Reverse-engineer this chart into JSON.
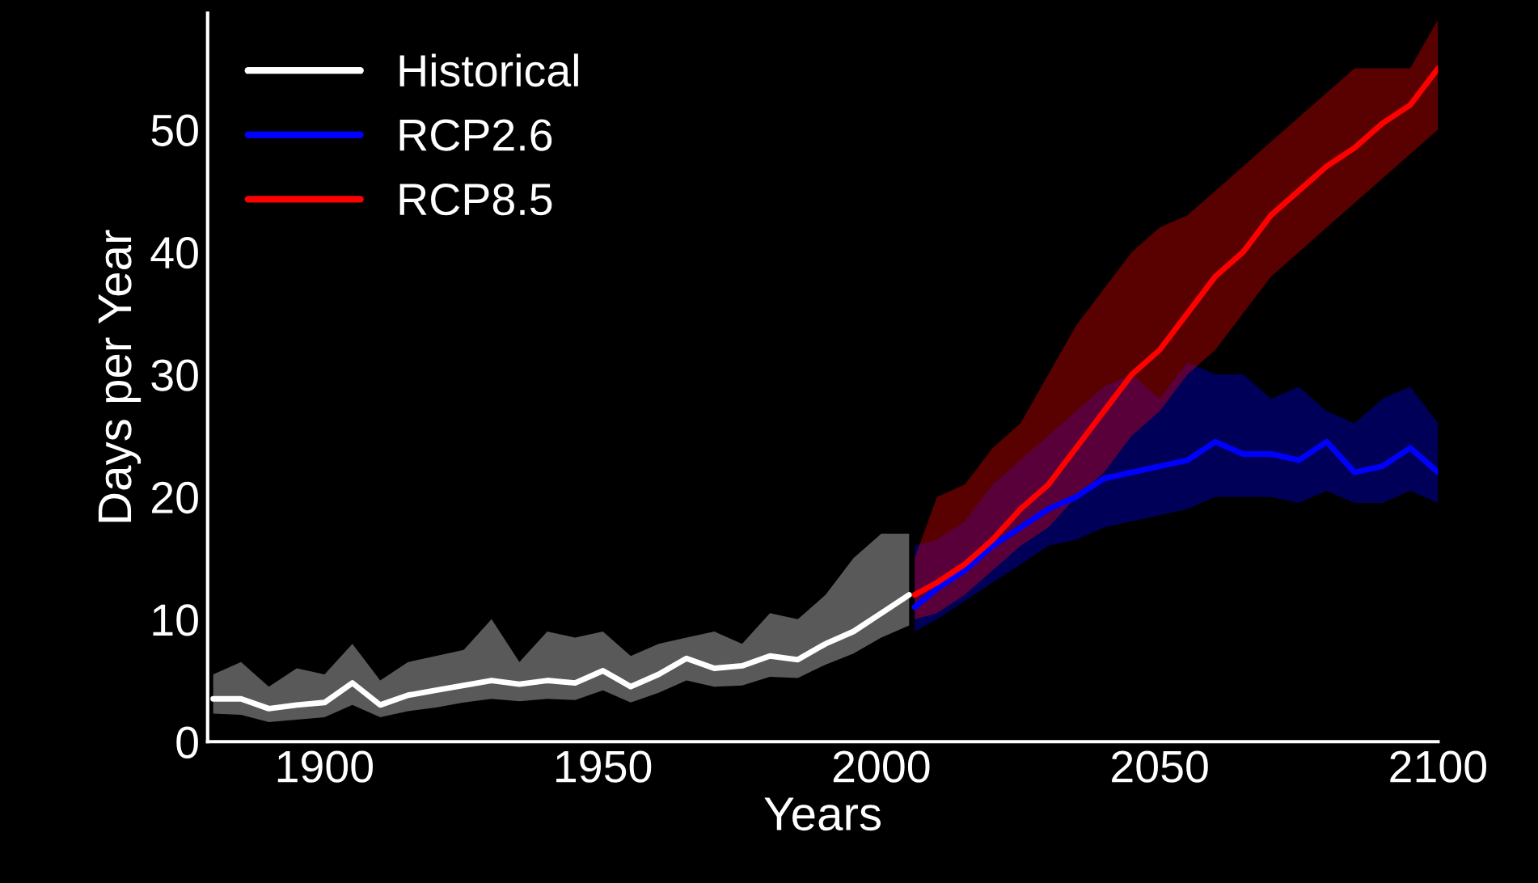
{
  "chart_data": {
    "type": "line",
    "xlabel": "Years",
    "ylabel": "Days per Year",
    "xlim": [
      1879,
      2100
    ],
    "ylim": [
      0,
      59.5
    ],
    "xticks": [
      1900,
      1950,
      2000,
      2050,
      2100
    ],
    "yticks": [
      0,
      10,
      20,
      30,
      40,
      50
    ],
    "grid": false,
    "legend": "top left",
    "line_style": "solid",
    "marker": "none",
    "series": [
      {
        "name": "Historical",
        "color": "#ffffff",
        "x": [
          1880,
          1885,
          1890,
          1895,
          1900,
          1905,
          1910,
          1915,
          1920,
          1925,
          1930,
          1935,
          1940,
          1945,
          1950,
          1955,
          1960,
          1965,
          1970,
          1975,
          1980,
          1985,
          1990,
          1995,
          2000,
          2005
        ],
        "values": [
          3.5,
          3.5,
          2.7,
          3,
          3.2,
          4.8,
          3,
          3.8,
          4.2,
          4.6,
          5,
          4.7,
          5,
          4.8,
          5.8,
          4.5,
          5.5,
          6.8,
          6,
          6.2,
          7,
          6.7,
          8,
          9,
          10.5,
          12
        ],
        "lower": [
          2.3,
          2.2,
          1.6,
          1.8,
          2,
          3,
          2,
          2.5,
          2.8,
          3.2,
          3.5,
          3.3,
          3.5,
          3.4,
          4.2,
          3.2,
          4,
          5,
          4.5,
          4.6,
          5.3,
          5.2,
          6.3,
          7.2,
          8.5,
          9.5
        ],
        "upper": [
          5.5,
          6.5,
          4.5,
          6,
          5.5,
          8,
          5,
          6.5,
          7,
          7.5,
          10,
          6.5,
          9,
          8.5,
          9,
          7,
          8,
          8.5,
          9,
          8,
          10.5,
          10,
          12,
          15,
          17,
          17
        ]
      },
      {
        "name": "RCP2.6",
        "color": "#0000ff",
        "x": [
          2006,
          2010,
          2015,
          2020,
          2025,
          2030,
          2035,
          2040,
          2045,
          2050,
          2055,
          2060,
          2065,
          2070,
          2075,
          2080,
          2085,
          2090,
          2095,
          2100
        ],
        "values": [
          11,
          12.5,
          14,
          16,
          17.5,
          19,
          20,
          21.5,
          22,
          22.5,
          23,
          24.5,
          23.5,
          23.5,
          23,
          24.5,
          22,
          22.5,
          24,
          22
        ],
        "lower": [
          9,
          10,
          11.5,
          13,
          14.5,
          16,
          16.5,
          17.5,
          18,
          18.5,
          19,
          20,
          20,
          20,
          19.5,
          20.5,
          19.5,
          19.5,
          20.5,
          19.5
        ],
        "upper": [
          16,
          16.5,
          18,
          21,
          23,
          25,
          27,
          29,
          30,
          28,
          31,
          30,
          30,
          28,
          29,
          27,
          26,
          28,
          29,
          26
        ]
      },
      {
        "name": "RCP8.5",
        "color": "#ff0000",
        "x": [
          2006,
          2010,
          2015,
          2020,
          2025,
          2030,
          2035,
          2040,
          2045,
          2050,
          2055,
          2060,
          2065,
          2070,
          2075,
          2080,
          2085,
          2090,
          2095,
          2100
        ],
        "values": [
          12,
          13,
          14.5,
          16.5,
          19,
          21,
          24,
          27,
          30,
          32,
          35,
          38,
          40,
          43,
          45,
          47,
          48.5,
          50.5,
          52,
          55
        ],
        "lower": [
          10,
          10.5,
          12,
          14,
          16,
          17.5,
          20,
          22,
          25,
          27,
          30,
          32,
          35,
          38,
          40,
          42,
          44,
          46,
          48,
          50
        ],
        "upper": [
          15,
          20,
          21,
          24,
          26,
          30,
          34,
          37,
          40,
          42,
          43,
          45,
          47,
          49,
          51,
          53,
          55,
          55,
          55,
          59
        ]
      }
    ]
  }
}
